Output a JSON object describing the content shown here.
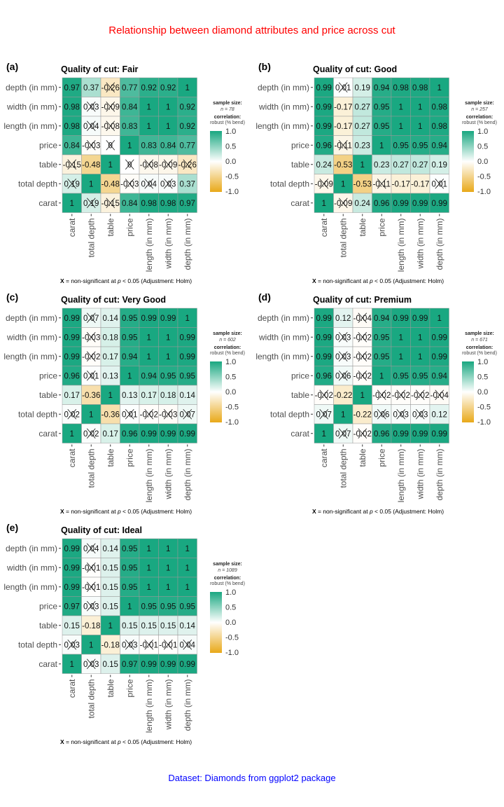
{
  "title": "Relationship between diamond attributes and price across cut",
  "caption": "Dataset: Diamonds from ggplot2 package",
  "colors": {
    "title": "#ff0000",
    "caption": "#0000ff",
    "low": "#E69F00",
    "mid": "#FFFFFF",
    "high": "#009E73"
  },
  "chart_data": {
    "type": "heatmap",
    "variables": [
      "carat",
      "total depth",
      "table",
      "price",
      "length (in mm)",
      "width (in mm)",
      "depth (in mm)"
    ],
    "legend": {
      "size_label": "sample size:",
      "corr_label": "correlation:",
      "corr_type": "robust (% bend)",
      "ticks": [
        "1.0",
        "0.5",
        "0.0",
        "-0.5",
        "-1.0"
      ],
      "range": [
        -1,
        1
      ],
      "placement": "right"
    },
    "footnote": {
      "symbol": "X",
      "text1": "= non-significant at",
      "p": "p",
      "text2": "< 0.05 (Adjustment: Holm)"
    },
    "panels": [
      {
        "tag": "(a)",
        "title": "Quality of cut: Fair",
        "n": "n = 78",
        "r": [
          [
            1,
            0.19,
            -0.15,
            0.84,
            0.98,
            0.98,
            0.97
          ],
          [
            0.19,
            1,
            -0.48,
            -0.03,
            0.04,
            0.03,
            0.37
          ],
          [
            -0.15,
            -0.48,
            1,
            0,
            -0.08,
            -0.09,
            -0.26
          ],
          [
            0.84,
            -0.03,
            0,
            1,
            0.83,
            0.84,
            0.77
          ],
          [
            0.98,
            0.04,
            -0.08,
            0.83,
            1,
            1,
            0.92
          ],
          [
            0.98,
            0.03,
            -0.09,
            0.84,
            1,
            1,
            0.92
          ],
          [
            0.97,
            0.37,
            -0.26,
            0.77,
            0.92,
            0.92,
            1
          ]
        ],
        "ns": [
          [
            0,
            1,
            1,
            0,
            0,
            0,
            0
          ],
          [
            1,
            0,
            0,
            1,
            1,
            1,
            0
          ],
          [
            1,
            0,
            0,
            1,
            1,
            1,
            1
          ],
          [
            0,
            1,
            1,
            0,
            0,
            0,
            0
          ],
          [
            0,
            1,
            1,
            0,
            0,
            0,
            0
          ],
          [
            0,
            1,
            1,
            0,
            0,
            0,
            0
          ],
          [
            0,
            0,
            1,
            0,
            0,
            0,
            0
          ]
        ]
      },
      {
        "tag": "(b)",
        "title": "Quality of cut: Good",
        "n": "n = 257",
        "r": [
          [
            1,
            -0.09,
            0.24,
            0.96,
            0.99,
            0.99,
            0.99
          ],
          [
            -0.09,
            1,
            -0.53,
            -0.11,
            -0.17,
            -0.17,
            0.01
          ],
          [
            0.24,
            -0.53,
            1,
            0.23,
            0.27,
            0.27,
            0.19
          ],
          [
            0.96,
            -0.11,
            0.23,
            1,
            0.95,
            0.95,
            0.94
          ],
          [
            0.99,
            -0.17,
            0.27,
            0.95,
            1,
            1,
            0.98
          ],
          [
            0.99,
            -0.17,
            0.27,
            0.95,
            1,
            1,
            0.98
          ],
          [
            0.99,
            0.01,
            0.19,
            0.94,
            0.98,
            0.98,
            1
          ]
        ],
        "ns": [
          [
            0,
            1,
            0,
            0,
            0,
            0,
            0
          ],
          [
            1,
            0,
            0,
            1,
            0,
            0,
            1
          ],
          [
            0,
            0,
            0,
            0,
            0,
            0,
            0
          ],
          [
            0,
            1,
            0,
            0,
            0,
            0,
            0
          ],
          [
            0,
            0,
            0,
            0,
            0,
            0,
            0
          ],
          [
            0,
            0,
            0,
            0,
            0,
            0,
            0
          ],
          [
            0,
            1,
            0,
            0,
            0,
            0,
            0
          ]
        ]
      },
      {
        "tag": "(c)",
        "title": "Quality of cut: Very Good",
        "n": "n = 602",
        "r": [
          [
            1,
            0.02,
            0.17,
            0.96,
            0.99,
            0.99,
            0.99
          ],
          [
            0.02,
            1,
            -0.36,
            0.01,
            -0.02,
            -0.03,
            0.07
          ],
          [
            0.17,
            -0.36,
            1,
            0.13,
            0.17,
            0.18,
            0.14
          ],
          [
            0.96,
            0.01,
            0.13,
            1,
            0.94,
            0.95,
            0.95
          ],
          [
            0.99,
            -0.02,
            0.17,
            0.94,
            1,
            1,
            0.99
          ],
          [
            0.99,
            -0.03,
            0.18,
            0.95,
            1,
            1,
            0.99
          ],
          [
            0.99,
            0.07,
            0.14,
            0.95,
            0.99,
            0.99,
            1
          ]
        ],
        "ns": [
          [
            0,
            1,
            0,
            0,
            0,
            0,
            0
          ],
          [
            1,
            0,
            0,
            1,
            1,
            1,
            1
          ],
          [
            0,
            0,
            0,
            0,
            0,
            0,
            0
          ],
          [
            0,
            1,
            0,
            0,
            0,
            0,
            0
          ],
          [
            0,
            1,
            0,
            0,
            0,
            0,
            0
          ],
          [
            0,
            1,
            0,
            0,
            0,
            0,
            0
          ],
          [
            0,
            1,
            0,
            0,
            0,
            0,
            0
          ]
        ]
      },
      {
        "tag": "(d)",
        "title": "Quality of cut: Premium",
        "n": "n = 671",
        "r": [
          [
            1,
            0.07,
            -0.02,
            0.96,
            0.99,
            0.99,
            0.99
          ],
          [
            0.07,
            1,
            -0.22,
            0.06,
            0.03,
            0.03,
            0.12
          ],
          [
            -0.02,
            -0.22,
            1,
            -0.02,
            -0.02,
            -0.02,
            -0.04
          ],
          [
            0.96,
            0.06,
            -0.02,
            1,
            0.95,
            0.95,
            0.94
          ],
          [
            0.99,
            0.03,
            -0.02,
            0.95,
            1,
            1,
            0.99
          ],
          [
            0.99,
            0.03,
            -0.02,
            0.95,
            1,
            1,
            0.99
          ],
          [
            0.99,
            0.12,
            -0.04,
            0.94,
            0.99,
            0.99,
            1
          ]
        ],
        "ns": [
          [
            0,
            1,
            1,
            0,
            0,
            0,
            0
          ],
          [
            1,
            0,
            0,
            1,
            1,
            1,
            0
          ],
          [
            1,
            0,
            0,
            1,
            1,
            1,
            1
          ],
          [
            0,
            1,
            1,
            0,
            0,
            0,
            0
          ],
          [
            0,
            1,
            1,
            0,
            0,
            0,
            0
          ],
          [
            0,
            1,
            1,
            0,
            0,
            0,
            0
          ],
          [
            0,
            0,
            1,
            0,
            0,
            0,
            0
          ]
        ]
      },
      {
        "tag": "(e)",
        "title": "Quality of cut: Ideal",
        "n": "n = 1089",
        "r": [
          [
            1,
            0.03,
            0.15,
            0.97,
            0.99,
            0.99,
            0.99
          ],
          [
            0.03,
            1,
            -0.18,
            0.03,
            -0.01,
            -0.01,
            0.04
          ],
          [
            0.15,
            -0.18,
            1,
            0.15,
            0.15,
            0.15,
            0.14
          ],
          [
            0.97,
            0.03,
            0.15,
            1,
            0.95,
            0.95,
            0.95
          ],
          [
            0.99,
            -0.01,
            0.15,
            0.95,
            1,
            1,
            1
          ],
          [
            0.99,
            -0.01,
            0.15,
            0.95,
            1,
            1,
            1
          ],
          [
            0.99,
            0.04,
            0.14,
            0.95,
            1,
            1,
            1
          ]
        ],
        "ns": [
          [
            0,
            1,
            0,
            0,
            0,
            0,
            0
          ],
          [
            1,
            0,
            0,
            1,
            1,
            1,
            1
          ],
          [
            0,
            0,
            0,
            0,
            0,
            0,
            0
          ],
          [
            0,
            1,
            0,
            0,
            0,
            0,
            0
          ],
          [
            0,
            1,
            0,
            0,
            0,
            0,
            0
          ],
          [
            0,
            1,
            0,
            0,
            0,
            0,
            0
          ],
          [
            0,
            1,
            0,
            0,
            0,
            0,
            0
          ]
        ]
      }
    ]
  }
}
